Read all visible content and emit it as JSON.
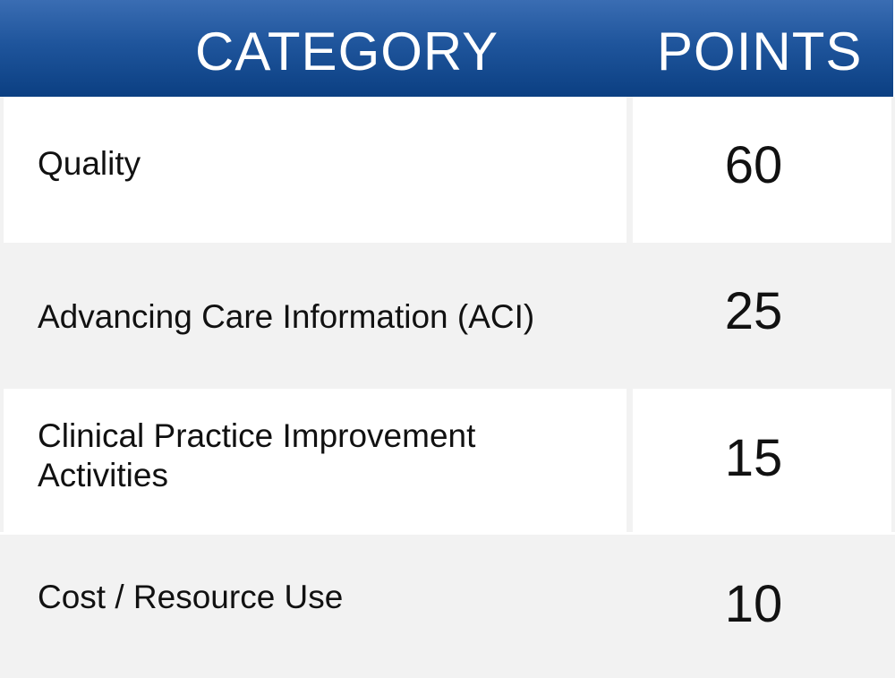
{
  "header": {
    "category_label": "CATEGORY",
    "points_label": "POINTS"
  },
  "chart_data": {
    "type": "table",
    "columns": [
      "CATEGORY",
      "POINTS"
    ],
    "rows": [
      {
        "category": "Quality",
        "points": "60"
      },
      {
        "category": "Advancing Care Information (ACI)",
        "points": "25"
      },
      {
        "category": "Clinical Practice Improvement Activities",
        "points": "15"
      },
      {
        "category": "Cost / Resource Use",
        "points": "10"
      }
    ]
  },
  "colors": {
    "header_top": "#3a6db3",
    "header_bottom": "#0b3f82",
    "row_light": "#ffffff",
    "row_gray": "#f2f2f2",
    "text": "#111111"
  }
}
